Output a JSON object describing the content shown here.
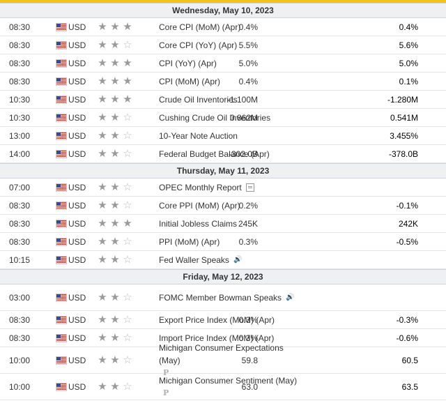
{
  "currency": "USD",
  "days": [
    {
      "label": "Wednesday, May 10, 2023",
      "events": [
        {
          "time": "08:30",
          "stars": 3,
          "event": "Core CPI (MoM) (Apr)",
          "actual": "0.4%",
          "forecast": "0.4%"
        },
        {
          "time": "08:30",
          "stars": 2,
          "event": "Core CPI (YoY) (Apr)",
          "actual": "5.5%",
          "forecast": "5.6%"
        },
        {
          "time": "08:30",
          "stars": 3,
          "event": "CPI (YoY) (Apr)",
          "actual": "5.0%",
          "forecast": "5.0%"
        },
        {
          "time": "08:30",
          "stars": 3,
          "event": "CPI (MoM) (Apr)",
          "actual": "0.4%",
          "forecast": "0.1%"
        },
        {
          "time": "10:30",
          "stars": 3,
          "event": "Crude Oil Inventories",
          "actual": "-1.100M",
          "forecast": "-1.280M"
        },
        {
          "time": "10:30",
          "stars": 2,
          "event": "Cushing Crude Oil Inventories",
          "actual": "0.862M",
          "forecast": "0.541M"
        },
        {
          "time": "13:00",
          "stars": 2,
          "event": "10-Year Note Auction",
          "actual": "",
          "forecast": "3.455%"
        },
        {
          "time": "14:00",
          "stars": 2,
          "event": "Federal Budget Balance (Apr)",
          "actual": "-302.0B",
          "forecast": "-378.0B"
        }
      ]
    },
    {
      "label": "Thursday, May 11, 2023",
      "events": [
        {
          "time": "07:00",
          "stars": 2,
          "event": "OPEC Monthly Report",
          "icon": "report-icon",
          "actual": "",
          "forecast": ""
        },
        {
          "time": "08:30",
          "stars": 2,
          "event": "Core PPI (MoM) (Apr)",
          "actual": "0.2%",
          "forecast": "-0.1%"
        },
        {
          "time": "08:30",
          "stars": 3,
          "event": "Initial Jobless Claims",
          "actual": "245K",
          "forecast": "242K"
        },
        {
          "time": "08:30",
          "stars": 2,
          "event": "PPI (MoM) (Apr)",
          "actual": "0.3%",
          "forecast": "-0.5%"
        },
        {
          "time": "10:15",
          "stars": 2,
          "event": "Fed Waller Speaks",
          "icon": "speaker-icon",
          "actual": "",
          "forecast": ""
        }
      ]
    },
    {
      "label": "Friday, May 12, 2023",
      "events": [
        {
          "time": "03:00",
          "stars": 2,
          "event": "FOMC Member Bowman Speaks",
          "icon": "speaker-icon",
          "actual": "",
          "forecast": "",
          "tall": true
        },
        {
          "time": "08:30",
          "stars": 2,
          "event": "Export Price Index (MoM) (Apr)",
          "actual": "0.3%",
          "forecast": "-0.3%"
        },
        {
          "time": "08:30",
          "stars": 2,
          "event": "Import Price Index (MoM) (Apr)",
          "actual": "0.3%",
          "forecast": "-0.6%"
        },
        {
          "time": "10:00",
          "stars": 2,
          "event": "Michigan Consumer Expectations (May)",
          "icon": "preliminary-icon",
          "actual": "59.8",
          "forecast": "60.5",
          "tall": true
        },
        {
          "time": "10:00",
          "stars": 2,
          "event": "Michigan Consumer Sentiment (May)",
          "icon": "preliminary-icon",
          "actual": "63.0",
          "forecast": "63.5",
          "tall": true
        }
      ]
    }
  ]
}
